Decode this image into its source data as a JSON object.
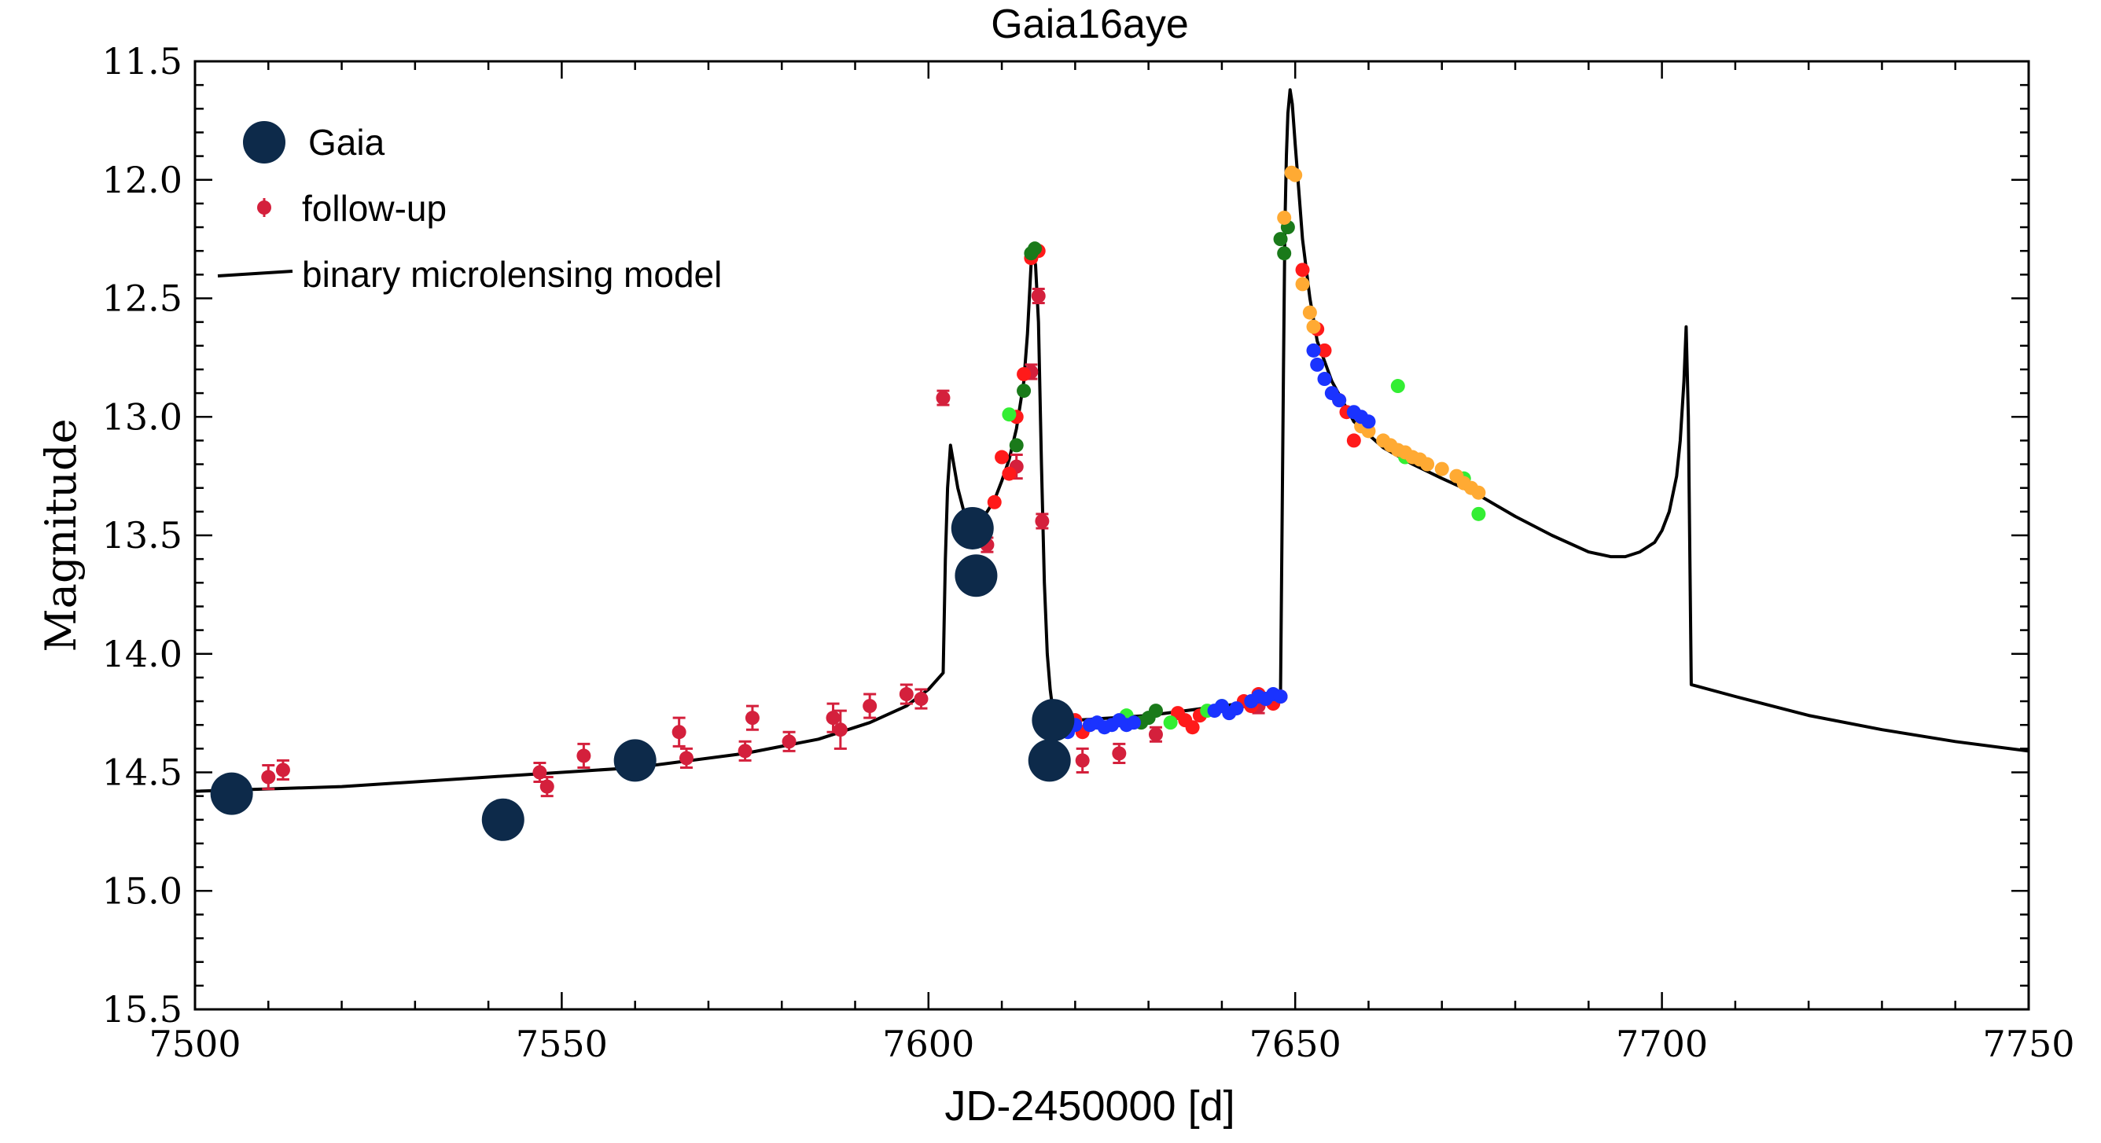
{
  "chart_data": {
    "type": "scatter",
    "title": "Gaia16aye",
    "xlabel": "JD-2450000 [d]",
    "ylabel": "Magnitude",
    "xlim": [
      7500,
      7750
    ],
    "ylim": [
      11.5,
      15.5
    ],
    "y_inverted": true,
    "grid": false,
    "legend_position": "top-left",
    "x_ticks": [
      7500,
      7550,
      7600,
      7650,
      7700,
      7750
    ],
    "x_tick_labels": [
      "7500",
      "7550",
      "7600",
      "7650",
      "7700",
      "7750"
    ],
    "y_ticks": [
      11.5,
      12.0,
      12.5,
      13.0,
      13.5,
      14.0,
      14.5,
      15.0,
      15.5
    ],
    "y_tick_labels": [
      "11.5",
      "12.0",
      "12.5",
      "13.0",
      "13.5",
      "14.0",
      "14.5",
      "15.0",
      "15.5"
    ],
    "legend": [
      {
        "label": "Gaia",
        "marker": "big-dot",
        "color": "#0d2a4a"
      },
      {
        "label": "follow-up",
        "marker": "small-dot-errorbar",
        "color": "#d4203c"
      },
      {
        "label": "binary microlensing model",
        "marker": "line",
        "color": "#000000"
      }
    ],
    "series": [
      {
        "name": "Gaia",
        "color": "#0d2a4a",
        "marker_size": "large",
        "x": [
          7505,
          7542,
          7560,
          7606,
          7606.5,
          7616.5,
          7617
        ],
        "y": [
          14.59,
          14.7,
          14.45,
          13.47,
          13.67,
          14.45,
          14.28
        ],
        "err": [
          0.07,
          0.08,
          0.08,
          0.08,
          0.05,
          0.08,
          0.07
        ]
      },
      {
        "name": "follow-up",
        "color": "#d4203c",
        "marker_size": "small",
        "x": [
          7510,
          7512,
          7547,
          7548,
          7553,
          7566,
          7567,
          7575,
          7576,
          7581,
          7587,
          7588,
          7592,
          7597,
          7599,
          7602,
          7607,
          7608,
          7612,
          7614,
          7615,
          7615.5,
          7621,
          7626,
          7631,
          7645
        ],
        "y": [
          14.52,
          14.49,
          14.5,
          14.56,
          14.43,
          14.33,
          14.44,
          14.41,
          14.27,
          14.37,
          14.27,
          14.32,
          14.22,
          14.17,
          14.19,
          12.92,
          13.5,
          13.54,
          13.21,
          12.81,
          12.49,
          13.44,
          14.45,
          14.42,
          14.34,
          14.22
        ],
        "err": [
          0.05,
          0.04,
          0.04,
          0.04,
          0.05,
          0.06,
          0.04,
          0.04,
          0.05,
          0.04,
          0.06,
          0.08,
          0.05,
          0.04,
          0.04,
          0.03,
          0.03,
          0.03,
          0.05,
          0.03,
          0.03,
          0.03,
          0.05,
          0.04,
          0.03,
          0.03
        ]
      },
      {
        "name": "",
        "color": "#ff1a1a",
        "marker_size": "small",
        "x": [
          7609,
          7610,
          7611,
          7612,
          7613,
          7614,
          7615,
          7618,
          7619,
          7620,
          7621,
          7622,
          7634,
          7635,
          7636,
          7637,
          7643,
          7644,
          7645,
          7646,
          7647,
          7648,
          7651,
          7653,
          7654,
          7656,
          7657,
          7658
        ],
        "y": [
          13.36,
          13.17,
          13.24,
          13.0,
          12.82,
          12.33,
          12.3,
          14.3,
          14.32,
          14.28,
          14.33,
          14.3,
          14.25,
          14.28,
          14.31,
          14.26,
          14.2,
          14.22,
          14.17,
          14.19,
          14.21,
          14.18,
          12.38,
          12.63,
          12.72,
          12.93,
          12.98,
          13.1
        ]
      },
      {
        "name": "",
        "color": "#1a7a1a",
        "marker_size": "small",
        "x": [
          7612,
          7613,
          7614,
          7614.5,
          7629,
          7630,
          7631,
          7648,
          7648.5,
          7649
        ],
        "y": [
          13.12,
          12.89,
          12.31,
          12.29,
          14.29,
          14.27,
          14.24,
          12.25,
          12.31,
          12.2
        ]
      },
      {
        "name": "",
        "color": "#33ee33",
        "marker_size": "small",
        "x": [
          7611,
          7627,
          7633,
          7638,
          7640,
          7664,
          7665,
          7673,
          7675
        ],
        "y": [
          12.99,
          14.26,
          14.29,
          14.24,
          14.22,
          12.87,
          13.17,
          13.26,
          13.41
        ]
      },
      {
        "name": "",
        "color": "#ffaa33",
        "marker_size": "small",
        "x": [
          7648.5,
          7649.5,
          7650,
          7651,
          7652,
          7652.5,
          7659,
          7660,
          7662,
          7663,
          7664,
          7665,
          7666,
          7667,
          7668,
          7670,
          7672,
          7673,
          7674,
          7675
        ],
        "y": [
          12.16,
          11.97,
          11.98,
          12.44,
          12.56,
          12.62,
          13.04,
          13.06,
          13.1,
          13.12,
          13.14,
          13.15,
          13.17,
          13.18,
          13.2,
          13.22,
          13.25,
          13.28,
          13.3,
          13.32
        ]
      },
      {
        "name": "",
        "color": "#1a33ff",
        "marker_size": "small",
        "x": [
          7618,
          7619,
          7620,
          7622,
          7623,
          7624,
          7625,
          7626,
          7627,
          7628,
          7639,
          7640,
          7641,
          7642,
          7644,
          7645,
          7646,
          7647,
          7648,
          7652.5,
          7653,
          7654,
          7655,
          7656,
          7658,
          7659,
          7660
        ],
        "y": [
          14.31,
          14.33,
          14.3,
          14.3,
          14.29,
          14.31,
          14.3,
          14.28,
          14.3,
          14.29,
          14.24,
          14.22,
          14.25,
          14.23,
          14.2,
          14.18,
          14.19,
          14.17,
          14.18,
          12.72,
          12.78,
          12.84,
          12.9,
          12.93,
          12.98,
          13.0,
          13.02
        ]
      }
    ],
    "model": {
      "name": "binary microlensing model",
      "color": "#000000",
      "x": [
        7500,
        7520,
        7540,
        7560,
        7575,
        7585,
        7592,
        7597,
        7600,
        7602,
        7602.3,
        7602.6,
        7603,
        7604,
        7605,
        7606,
        7607,
        7608,
        7609,
        7610,
        7611,
        7612,
        7613,
        7613.5,
        7614,
        7614.3,
        7614.6,
        7615,
        7615.4,
        7615.8,
        7616.2,
        7616.6,
        7617,
        7618,
        7620,
        7625,
        7630,
        7635,
        7640,
        7645,
        7647,
        7648,
        7648.2,
        7648.4,
        7648.6,
        7648.8,
        7649,
        7649.3,
        7649.6,
        7650,
        7650.5,
        7651,
        7652,
        7653,
        7655,
        7658,
        7662,
        7666,
        7670,
        7675,
        7680,
        7685,
        7690,
        7693,
        7695,
        7697,
        7699,
        7700,
        7701,
        7702,
        7702.5,
        7703,
        7703.3,
        7703.6,
        7704,
        7710,
        7720,
        7730,
        7740,
        7750
      ],
      "y": [
        14.58,
        14.56,
        14.52,
        14.48,
        14.42,
        14.36,
        14.29,
        14.22,
        14.15,
        14.08,
        13.6,
        13.3,
        13.12,
        13.3,
        13.42,
        13.45,
        13.44,
        13.4,
        13.35,
        13.27,
        13.18,
        13.05,
        12.85,
        12.65,
        12.35,
        12.32,
        12.36,
        12.6,
        13.2,
        13.7,
        14.0,
        14.15,
        14.25,
        14.28,
        14.28,
        14.27,
        14.26,
        14.24,
        14.22,
        14.2,
        14.19,
        14.18,
        13.5,
        12.8,
        12.2,
        11.9,
        11.72,
        11.62,
        11.68,
        11.85,
        12.05,
        12.25,
        12.5,
        12.68,
        12.85,
        13.02,
        13.13,
        13.2,
        13.26,
        13.33,
        13.42,
        13.5,
        13.57,
        13.59,
        13.59,
        13.57,
        13.53,
        13.48,
        13.4,
        13.25,
        13.1,
        12.85,
        12.62,
        13.0,
        14.13,
        14.18,
        14.26,
        14.32,
        14.37,
        14.41
      ]
    }
  }
}
